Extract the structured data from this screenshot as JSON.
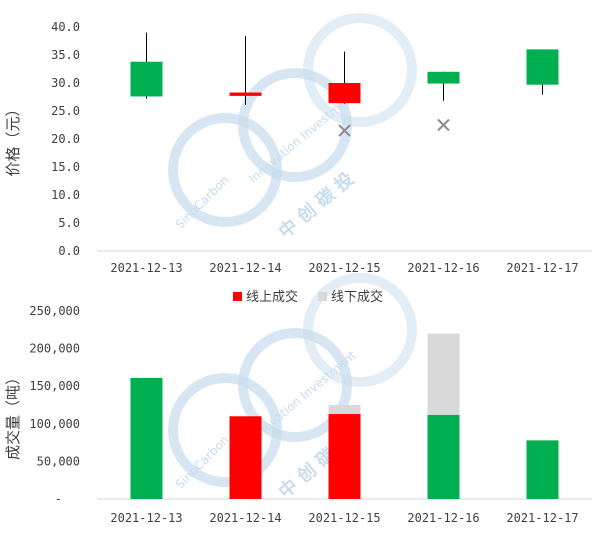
{
  "chart_data": [
    {
      "type": "candlestick",
      "ylabel": "价格（元）",
      "ylim": [
        0,
        40
      ],
      "yticks": [
        "0.0",
        "5.0",
        "10.0",
        "15.0",
        "20.0",
        "25.0",
        "30.0",
        "35.0",
        "40.0"
      ],
      "categories": [
        "2021-12-13",
        "2021-12-14",
        "2021-12-15",
        "2021-12-16",
        "2021-12-17"
      ],
      "candles": [
        {
          "open": 27.6,
          "close": 33.8,
          "high": 39.0,
          "low": 27.2,
          "color": "#00b050"
        },
        {
          "open": 28.3,
          "close": 27.7,
          "high": 38.4,
          "low": 26.1,
          "color": "#ff0000"
        },
        {
          "open": 30.0,
          "close": 26.4,
          "high": 35.6,
          "low": 26.3,
          "color": "#ff0000"
        },
        {
          "open": 29.9,
          "close": 32.0,
          "high": 32.0,
          "low": 26.8,
          "color": "#00b050"
        },
        {
          "open": 29.7,
          "close": 36.0,
          "high": 36.0,
          "low": 27.9,
          "color": "#00b050"
        }
      ],
      "offline_markers": [
        {
          "x": "2021-12-15",
          "y": 21.5
        },
        {
          "x": "2021-12-16",
          "y": 22.5
        }
      ],
      "marker_color": "#8c8c8c"
    },
    {
      "type": "bar",
      "stacked": true,
      "ylabel": "成交量（吨）",
      "ylim": [
        0,
        250000
      ],
      "yticks": [
        "-",
        "50,000",
        "100,000",
        "150,000",
        "200,000",
        "250,000"
      ],
      "categories": [
        "2021-12-13",
        "2021-12-14",
        "2021-12-15",
        "2021-12-16",
        "2021-12-17"
      ],
      "legend": [
        {
          "name": "线上成交",
          "color": "#ff0000"
        },
        {
          "name": "线下成交",
          "color": "#d9d9d9"
        }
      ],
      "legend_position": "top",
      "online": [
        161000,
        110000,
        113000,
        112000,
        78000
      ],
      "online_colors": [
        "#00b050",
        "#ff0000",
        "#ff0000",
        "#00b050",
        "#00b050"
      ],
      "offline": [
        0,
        0,
        12000,
        108000,
        0
      ],
      "offline_color": "#d9d9d9"
    }
  ],
  "watermark": {
    "brand": "SinoCarbon",
    "tagline": "Innovation Investment",
    "cn": "中 创 碳 投",
    "color": "#c7dcee"
  }
}
